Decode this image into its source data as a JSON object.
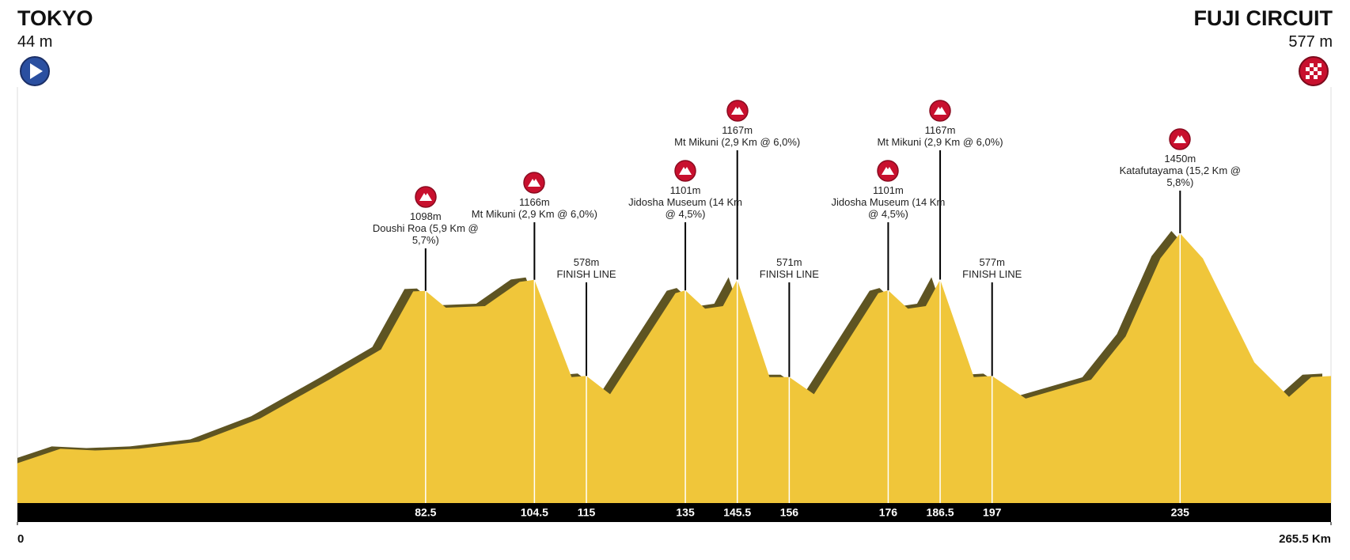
{
  "chart_data": {
    "type": "profile",
    "start": {
      "name": "TOKYO",
      "label": "44 m"
    },
    "finish": {
      "name": "FUJI CIRCUIT",
      "label": "577 m"
    },
    "x": [
      0,
      8.7,
      15.7,
      24.5,
      36.7,
      49,
      63,
      73.5,
      80,
      82.5,
      86.6,
      94.5,
      101.5,
      104.5,
      112,
      115,
      119.8,
      133,
      135,
      139,
      142.6,
      145.5,
      152,
      156,
      161,
      174,
      176,
      180,
      183.6,
      186.5,
      193.3,
      197,
      203.8,
      217,
      224,
      231,
      235,
      239.6,
      250,
      257,
      261.5,
      265.5
    ],
    "values": [
      44,
      132,
      122,
      132,
      175,
      317,
      555,
      740,
      1095,
      1098,
      995,
      1005,
      1153,
      1166,
      571,
      578,
      466,
      1084,
      1101,
      989,
      1005,
      1167,
      571,
      571,
      466,
      1084,
      1101,
      989,
      1005,
      1167,
      571,
      577,
      439,
      555,
      820,
      1296,
      1450,
      1296,
      661,
      450,
      571,
      577
    ],
    "color": "#f0c63a",
    "xlim": [
      0,
      265.5
    ],
    "ylim": [
      -200,
      1600
    ],
    "xticks": [
      0,
      {
        "value": 265.5,
        "label": "265.5 Km"
      }
    ],
    "markers": [
      {
        "x": 82.5,
        "value": 1098,
        "label": "1098m",
        "name": "Doushi Roa (5,9 Km @ 5,7%)",
        "kind": "climb"
      },
      {
        "x": 104.5,
        "value": 1166,
        "label": "1166m",
        "name": "Mt Mikuni (2,9 Km @ 6,0%)",
        "kind": "climb"
      },
      {
        "x": 115,
        "value": 578,
        "label": "578m",
        "name": "FINISH LINE",
        "kind": "sprint"
      },
      {
        "x": 135,
        "value": 1101,
        "label": "1101m",
        "name": "Jidosha Museum (14 Km @ 4,5%)",
        "kind": "climb"
      },
      {
        "x": 145.5,
        "value": 1167,
        "label": "1167m",
        "name": "Mt Mikuni (2,9 Km @ 6,0%)",
        "kind": "climb"
      },
      {
        "x": 156,
        "value": 571,
        "label": "571m",
        "name": "FINISH LINE",
        "kind": "sprint"
      },
      {
        "x": 176,
        "value": 1101,
        "label": "1101m",
        "name": "Jidosha Museum (14 Km @ 4,5%)",
        "kind": "climb"
      },
      {
        "x": 186.5,
        "value": 1167,
        "label": "1167m",
        "name": "Mt Mikuni (2,9 Km @ 6,0%)",
        "kind": "climb"
      },
      {
        "x": 197,
        "value": 577,
        "label": "577m",
        "name": "FINISH LINE",
        "kind": "sprint"
      },
      {
        "x": 235,
        "value": 1450,
        "label": "1450m",
        "name": "Katafutayama (15,2 Km @ 5,8%)",
        "kind": "climb"
      }
    ]
  }
}
